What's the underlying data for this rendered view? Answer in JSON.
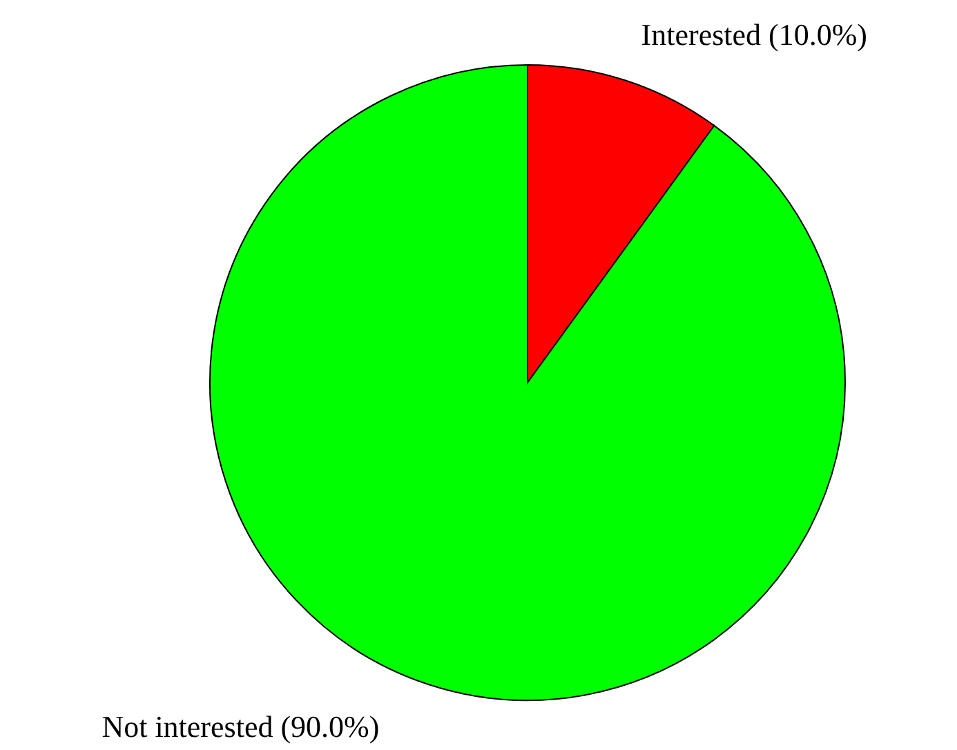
{
  "chart_data": {
    "type": "pie",
    "categories": [
      "Interested",
      "Not interested"
    ],
    "values": [
      10,
      90
    ],
    "colors": [
      "#ff0000",
      "#00ff00"
    ],
    "value_labels": [
      "(10.0%)",
      "(90.0%)"
    ],
    "legend": false
  }
}
